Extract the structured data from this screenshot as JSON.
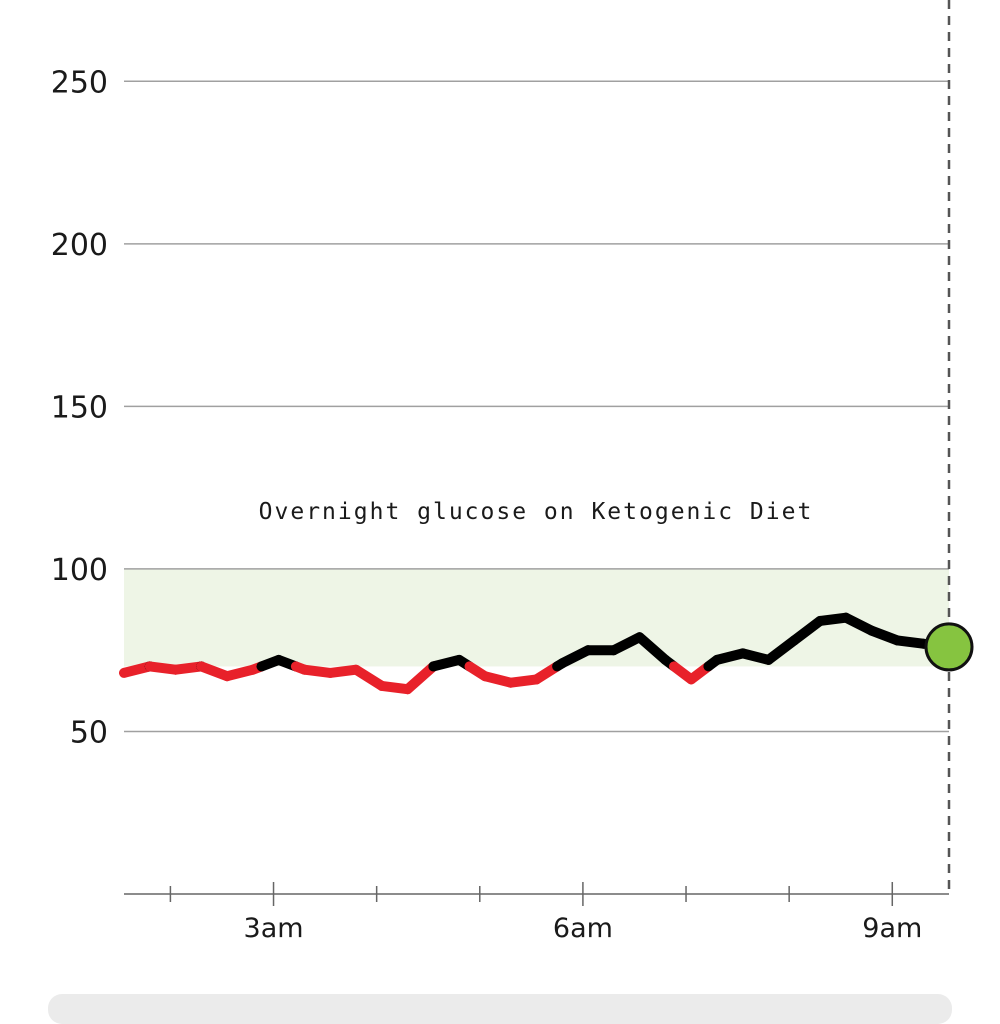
{
  "chart_data": {
    "type": "line",
    "title": "Overnight glucose on Ketogenic Diet",
    "xlabel": "",
    "ylabel": "",
    "yticks": [
      "50",
      "100",
      "150",
      "200",
      "250"
    ],
    "ytick_values": [
      50,
      100,
      150,
      200,
      250
    ],
    "ylim": [
      0,
      275
    ],
    "xticks": [
      "3am",
      "6am",
      "9am"
    ],
    "xtick_values": [
      "03:00",
      "06:00",
      "09:00"
    ],
    "xlim": [
      "01:33",
      "09:33"
    ],
    "target_range": [
      70,
      100
    ],
    "grid": true,
    "series": [
      {
        "x": [
          "01:33",
          "01:48",
          "02:03",
          "02:18",
          "02:33",
          "02:48",
          "03:03",
          "03:18",
          "03:33",
          "03:48",
          "04:03",
          "04:18",
          "04:33",
          "04:48",
          "05:03",
          "05:18",
          "05:33",
          "05:48",
          "06:03",
          "06:18",
          "06:33",
          "06:48",
          "07:03",
          "07:18",
          "07:33",
          "07:48",
          "08:03",
          "08:18",
          "08:33",
          "08:48",
          "09:03",
          "09:18",
          "09:33"
        ],
        "values": [
          68,
          70,
          69,
          70,
          67,
          69,
          72,
          69,
          68,
          69,
          64,
          63,
          70,
          72,
          67,
          65,
          66,
          71,
          75,
          75,
          79,
          72,
          66,
          72,
          74,
          72,
          78,
          84,
          85,
          81,
          78,
          77,
          76
        ]
      }
    ],
    "low_threshold": 70,
    "current_point": {
      "x": "09:33",
      "value": 76
    },
    "colors": {
      "in_range": "#000000",
      "below_range": "#e8212a",
      "target_band": "#eef5e6",
      "current_point": "#86c440",
      "grid": "#a0a0a0",
      "now_line": "#555555"
    }
  }
}
